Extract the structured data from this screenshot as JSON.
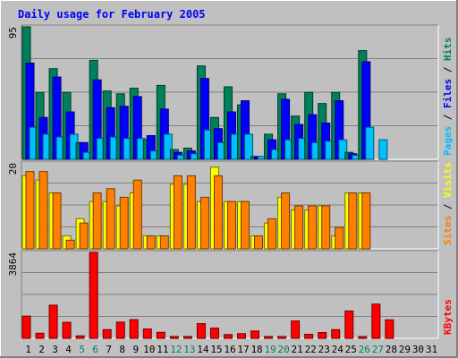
{
  "chart_data": {
    "type": "bar",
    "title": "Daily usage for February 2005",
    "days": [
      "1",
      "2",
      "3",
      "4",
      "5",
      "6",
      "7",
      "8",
      "9",
      "10",
      "11",
      "12",
      "13",
      "14",
      "15",
      "16",
      "17",
      "18",
      "19",
      "20",
      "21",
      "22",
      "23",
      "24",
      "25",
      "26",
      "27",
      "28",
      "29",
      "30",
      "31"
    ],
    "weekend_days": [
      "5",
      "6",
      "12",
      "13",
      "19",
      "20",
      "26",
      "27"
    ],
    "panels": [
      {
        "id": "top",
        "ylabel_max": "95",
        "ymax": 95,
        "legend": [
          {
            "text": "Pages",
            "color": "#00c0ff"
          },
          {
            "text": "Files",
            "color": "#0000ff"
          },
          {
            "text": "Hits",
            "color": "#00805c"
          }
        ],
        "series": [
          {
            "name": "Hits",
            "color": "#00805c",
            "values": [
              95,
              48,
              65,
              48,
              12,
              71,
              49,
              47,
              51,
              14,
              53,
              7,
              8,
              67,
              30,
              52,
              39,
              2,
              18,
              47,
              31,
              48,
              40,
              48,
              5,
              78,
              0,
              0,
              0,
              0,
              0
            ]
          },
          {
            "name": "Files",
            "color": "#0000ff",
            "values": [
              69,
              30,
              59,
              34,
              12,
              57,
              37,
              38,
              45,
              17,
              36,
              5,
              6,
              58,
              22,
              34,
              42,
              2,
              14,
              43,
              25,
              32,
              26,
              42,
              4,
              70,
              0,
              0,
              0,
              0,
              0
            ]
          },
          {
            "name": "Pages",
            "color": "#00c0ff",
            "values": [
              23,
              18,
              16,
              18,
              5,
              15,
              16,
              15,
              15,
              6,
              18,
              3,
              4,
              21,
              12,
              18,
              18,
              2,
              7,
              14,
              15,
              12,
              13,
              14,
              3,
              23,
              14,
              0,
              0,
              0,
              0
            ]
          }
        ]
      },
      {
        "id": "middle",
        "ylabel_max": "20",
        "ymax": 20,
        "legend": [
          {
            "text": "Sites",
            "color": "#ff8000"
          },
          {
            "text": "Visits",
            "color": "#ffff00"
          }
        ],
        "series": [
          {
            "name": "Visits",
            "color": "#ffff00",
            "values": [
              17,
              16,
              13,
              3,
              7,
              11,
              11,
              10,
              13,
              3,
              3,
              15,
              15,
              11,
              19,
              11,
              11,
              3,
              6,
              12,
              9,
              9,
              10,
              3,
              13,
              13,
              0,
              0,
              0,
              0,
              0
            ]
          },
          {
            "name": "Sites",
            "color": "#ff8000",
            "values": [
              18,
              18,
              13,
              2,
              6,
              13,
              14,
              12,
              16,
              3,
              3,
              17,
              17,
              12,
              17,
              11,
              11,
              3,
              7,
              13,
              10,
              10,
              10,
              5,
              13,
              13,
              0,
              0,
              0,
              0,
              0
            ]
          }
        ]
      },
      {
        "id": "bottom",
        "ylabel_max": "3864",
        "ymax": 3864,
        "legend": [
          {
            "text": "KBytes",
            "color": "#ff0000"
          }
        ],
        "series": [
          {
            "name": "KBytes",
            "color": "#ff0000",
            "values": [
              1000,
              230,
              1490,
              720,
              110,
              3864,
              390,
              730,
              840,
              420,
              270,
              60,
              60,
              660,
              460,
              170,
              210,
              330,
              40,
              40,
              780,
              180,
              260,
              390,
              1230,
              40,
              1540,
              830,
              0,
              0,
              0
            ]
          }
        ]
      }
    ]
  }
}
